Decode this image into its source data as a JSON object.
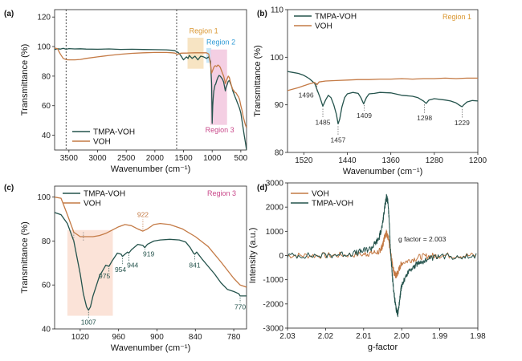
{
  "colors": {
    "tmpa": "#24534c",
    "voh": "#c47a45",
    "region1": "#d9952e",
    "region2": "#2f9bd6",
    "region3": "#c9488a",
    "region1_fill": "#f6dfb8",
    "region2_fill": "#bfe3f7",
    "region3_fill": "#f2c7de",
    "region3c_fill": "#fbe0d4"
  },
  "chart_data": [
    {
      "panel": "(a)",
      "type": "line",
      "xlabel": "Wavenumber (cm⁻¹)",
      "ylabel": "Transmittance (%)",
      "xlim": [
        3750,
        400
      ],
      "ylim": [
        30,
        125
      ],
      "xticks": [
        3500,
        3000,
        2500,
        2000,
        1500,
        1000,
        500
      ],
      "yticks": [
        40,
        60,
        80,
        100,
        120
      ],
      "legend_position": "bottom-left",
      "region_labels": [
        "Region 1",
        "Region 2",
        "Region 3"
      ],
      "series": [
        {
          "name": "TMPA-VOH",
          "color_key": "tmpa",
          "x": [
            3750,
            3700,
            3650,
            3600,
            3550,
            3500,
            3400,
            3300,
            3200,
            3000,
            2800,
            2600,
            2400,
            2200,
            2000,
            1800,
            1700,
            1650,
            1620,
            1600,
            1580,
            1550,
            1500,
            1450,
            1420,
            1400,
            1350,
            1300,
            1250,
            1200,
            1150,
            1100,
            1060,
            1030,
            1010,
            1000,
            990,
            980,
            970,
            960,
            950,
            940,
            920,
            900,
            880,
            860,
            840,
            820,
            800,
            780,
            770,
            760,
            740,
            720,
            700,
            680,
            660,
            640,
            620,
            600,
            580,
            560,
            540,
            520,
            500,
            480,
            460,
            440,
            420,
            400
          ],
          "y": [
            98,
            98.5,
            98.3,
            98.8,
            98.2,
            98.6,
            98.4,
            98.5,
            98.3,
            98.2,
            98.4,
            98.1,
            98.2,
            98.0,
            97.9,
            97.8,
            97.5,
            97.2,
            96.5,
            96.2,
            95.5,
            94.0,
            91.0,
            93.0,
            92.0,
            94.0,
            92.0,
            93.5,
            91.0,
            93.5,
            93.0,
            92.0,
            93.0,
            90.0,
            75.0,
            48.0,
            60.0,
            66.0,
            70.0,
            72.0,
            74.0,
            74.5,
            77.0,
            79.0,
            80.5,
            80.0,
            79.0,
            78.0,
            76.0,
            72.0,
            70.0,
            72.0,
            74.0,
            76.5,
            77.0,
            75.0,
            73.0,
            70.0,
            68.0,
            66.0,
            64.0,
            62.0,
            60.0,
            58.0,
            55.0,
            50.0,
            45.0,
            40.0,
            35.0,
            30.0
          ]
        },
        {
          "name": "VOH",
          "color_key": "voh",
          "x": [
            3750,
            3700,
            3650,
            3600,
            3550,
            3500,
            3400,
            3300,
            3200,
            3000,
            2800,
            2600,
            2400,
            2200,
            2000,
            1800,
            1700,
            1650,
            1620,
            1600,
            1580,
            1550,
            1500,
            1450,
            1400,
            1300,
            1200,
            1100,
            1060,
            1030,
            1010,
            1000,
            990,
            980,
            970,
            960,
            950,
            940,
            920,
            900,
            880,
            860,
            840,
            820,
            800,
            780,
            770,
            760,
            740,
            720,
            700,
            680,
            660,
            640,
            620,
            600,
            580,
            560,
            540,
            520,
            500,
            480,
            460,
            440,
            420,
            400
          ],
          "y": [
            99,
            98.5,
            95,
            92,
            91.2,
            91.0,
            91.0,
            91.3,
            92.0,
            93.0,
            94.0,
            94.8,
            95.4,
            95.8,
            96.0,
            96.0,
            95.8,
            95.6,
            95.0,
            94.8,
            95.0,
            95.5,
            95.6,
            95.6,
            95.7,
            95.8,
            95.8,
            95.8,
            95.0,
            88.0,
            82.0,
            83.0,
            84.0,
            85.0,
            86.0,
            86.5,
            87.0,
            87.0,
            86.5,
            87.5,
            87.0,
            86.0,
            84.0,
            82.0,
            80.0,
            77.0,
            75.0,
            76.0,
            78.0,
            80.0,
            79.0,
            76.0,
            73.0,
            71.0,
            70.0,
            69.0,
            68.5,
            67.0,
            66.0,
            64.0,
            60.0,
            57.0,
            53.0,
            50.0,
            47.0,
            45.0
          ]
        }
      ]
    },
    {
      "panel": "(b)",
      "type": "line",
      "xlabel": "Wavenumber (cm⁻¹)",
      "ylabel": "Transmittance (%)",
      "xlim": [
        1550,
        1200
      ],
      "ylim": [
        80,
        110
      ],
      "xticks": [
        1520,
        1440,
        1360,
        1280,
        1200
      ],
      "yticks": [
        80,
        90,
        100,
        110
      ],
      "legend_position": "top-left",
      "region_label": "Region 1",
      "annotations": [
        {
          "text": "1496",
          "x": 1496,
          "series": "VOH"
        },
        {
          "text": "1485",
          "x": 1485,
          "series": "TMPA-VOH"
        },
        {
          "text": "1457",
          "x": 1457,
          "series": "TMPA-VOH"
        },
        {
          "text": "1409",
          "x": 1409,
          "series": "TMPA-VOH"
        },
        {
          "text": "1298",
          "x": 1298,
          "series": "TMPA-VOH"
        },
        {
          "text": "1229",
          "x": 1229,
          "series": "TMPA-VOH"
        }
      ],
      "series": [
        {
          "name": "TMPA-VOH",
          "color_key": "tmpa",
          "x": [
            1550,
            1540,
            1530,
            1520,
            1510,
            1500,
            1495,
            1490,
            1485,
            1480,
            1475,
            1470,
            1465,
            1460,
            1457,
            1454,
            1450,
            1445,
            1440,
            1430,
            1420,
            1415,
            1410,
            1405,
            1400,
            1390,
            1380,
            1360,
            1340,
            1320,
            1310,
            1300,
            1295,
            1290,
            1280,
            1260,
            1250,
            1240,
            1232,
            1229,
            1226,
            1220,
            1210,
            1200
          ],
          "y": [
            97.0,
            96.8,
            96.6,
            96.2,
            95.5,
            94.5,
            93.0,
            91.5,
            89.7,
            91.0,
            92.0,
            91.5,
            90.0,
            88.0,
            86.0,
            87.0,
            89.5,
            91.5,
            92.3,
            92.6,
            92.4,
            91.5,
            90.2,
            91.5,
            92.3,
            92.4,
            92.6,
            92.5,
            92.0,
            91.8,
            91.5,
            90.8,
            90.3,
            91.0,
            91.3,
            91.0,
            90.8,
            90.4,
            89.8,
            89.6,
            90.0,
            90.6,
            90.9,
            90.8
          ]
        },
        {
          "name": "VOH",
          "color_key": "voh",
          "x": [
            1550,
            1530,
            1520,
            1510,
            1500,
            1496,
            1492,
            1480,
            1460,
            1440,
            1420,
            1400,
            1380,
            1360,
            1340,
            1320,
            1300,
            1280,
            1260,
            1240,
            1220,
            1200
          ],
          "y": [
            93.0,
            93.6,
            94.0,
            94.4,
            94.7,
            94.2,
            94.8,
            95.0,
            95.1,
            95.2,
            95.3,
            95.3,
            95.4,
            95.4,
            95.5,
            95.4,
            95.5,
            95.5,
            95.6,
            95.5,
            95.6,
            95.6
          ]
        }
      ]
    },
    {
      "panel": "(c)",
      "type": "line",
      "xlabel": "Wavenumber (cm⁻¹)",
      "ylabel": "Transmittance (%)",
      "xlim": [
        1060,
        760
      ],
      "ylim": [
        40,
        105
      ],
      "xticks": [
        1020,
        960,
        900,
        840,
        780
      ],
      "yticks": [
        40,
        60,
        80,
        100
      ],
      "legend_position": "top-left",
      "region_label": "Region 3",
      "annotations": [
        {
          "text": "922",
          "x": 922,
          "series": "VOH"
        },
        {
          "text": "1007",
          "x": 1007,
          "series": "TMPA-VOH"
        },
        {
          "text": "975",
          "x": 975,
          "series": "TMPA-VOH"
        },
        {
          "text": "954",
          "x": 954,
          "series": "TMPA-VOH"
        },
        {
          "text": "944",
          "x": 944,
          "series": "TMPA-VOH"
        },
        {
          "text": "919",
          "x": 919,
          "series": "TMPA-VOH"
        },
        {
          "text": "841",
          "x": 841,
          "series": "TMPA-VOH"
        },
        {
          "text": "770",
          "x": 770,
          "series": "TMPA-VOH"
        }
      ],
      "series": [
        {
          "name": "TMPA-VOH",
          "color_key": "tmpa",
          "x": [
            1060,
            1050,
            1040,
            1030,
            1020,
            1015,
            1010,
            1007,
            1004,
            1000,
            990,
            980,
            975,
            970,
            962,
            956,
            954,
            950,
            946,
            944,
            940,
            930,
            922,
            919,
            915,
            905,
            895,
            880,
            865,
            855,
            848,
            843,
            841,
            838,
            830,
            820,
            810,
            800,
            790,
            780,
            772,
            770,
            765,
            760
          ],
          "y": [
            93.0,
            92.0,
            88.0,
            80.0,
            65.0,
            56.0,
            50.0,
            48.5,
            50.0,
            55.0,
            64.0,
            69.0,
            68.5,
            71.0,
            74.5,
            74.0,
            73.0,
            74.0,
            75.0,
            74.5,
            76.0,
            78.5,
            78.0,
            77.0,
            78.5,
            80.0,
            80.5,
            80.8,
            80.5,
            79.5,
            77.0,
            74.5,
            74.0,
            75.0,
            72.0,
            68.5,
            65.0,
            61.0,
            58.0,
            57.0,
            56.0,
            55.0,
            55.0,
            55.0
          ]
        },
        {
          "name": "VOH",
          "color_key": "voh",
          "x": [
            1060,
            1050,
            1040,
            1030,
            1020,
            1010,
            1000,
            990,
            980,
            970,
            960,
            950,
            940,
            930,
            922,
            915,
            905,
            895,
            880,
            860,
            840,
            820,
            800,
            780,
            770,
            760
          ],
          "y": [
            100.0,
            99.5,
            92.0,
            84.0,
            82.0,
            82.0,
            82.0,
            82.5,
            83.5,
            85.0,
            86.5,
            87.5,
            87.0,
            85.5,
            84.5,
            85.5,
            87.5,
            88.0,
            87.5,
            85.5,
            82.0,
            77.5,
            70.5,
            63.0,
            60.0,
            59.0
          ]
        }
      ]
    },
    {
      "panel": "(d)",
      "type": "line",
      "xlabel": "g-factor",
      "ylabel": "Intensity (a.u.)",
      "xlim": [
        2.03,
        1.98
      ],
      "ylim": [
        -3000,
        3000
      ],
      "xticks": [
        2.03,
        2.02,
        2.01,
        2.0,
        1.99,
        1.98
      ],
      "yticks": [
        -3000,
        -2000,
        -1000,
        0,
        1000,
        2000,
        3000
      ],
      "legend_position": "top-left",
      "annotation": "g factor = 2.003",
      "series": [
        {
          "name": "VOH",
          "color_key": "voh",
          "x": [
            2.03,
            2.02,
            2.01,
            2.006,
            2.005,
            2.0045,
            2.004,
            2.0035,
            2.003,
            2.0025,
            2.002,
            2.0015,
            2.001,
            2.0,
            1.995,
            1.99,
            1.98
          ],
          "y": [
            0,
            0,
            50,
            150,
            400,
            800,
            950,
            700,
            200,
            -300,
            -700,
            -850,
            -700,
            -300,
            -50,
            0,
            0
          ]
        },
        {
          "name": "TMPA-VOH",
          "color_key": "tmpa",
          "x": [
            2.03,
            2.02,
            2.012,
            2.008,
            2.006,
            2.005,
            2.0045,
            2.004,
            2.0036,
            2.0032,
            2.003,
            2.0025,
            2.002,
            2.0015,
            2.001,
            2.0005,
            2.0,
            1.998,
            1.995,
            1.99,
            1.98
          ],
          "y": [
            0,
            0,
            100,
            300,
            700,
            1300,
            2000,
            2400,
            2200,
            1200,
            300,
            -800,
            -1600,
            -2200,
            -2400,
            -1800,
            -1200,
            -600,
            -250,
            -50,
            0
          ]
        }
      ]
    }
  ]
}
